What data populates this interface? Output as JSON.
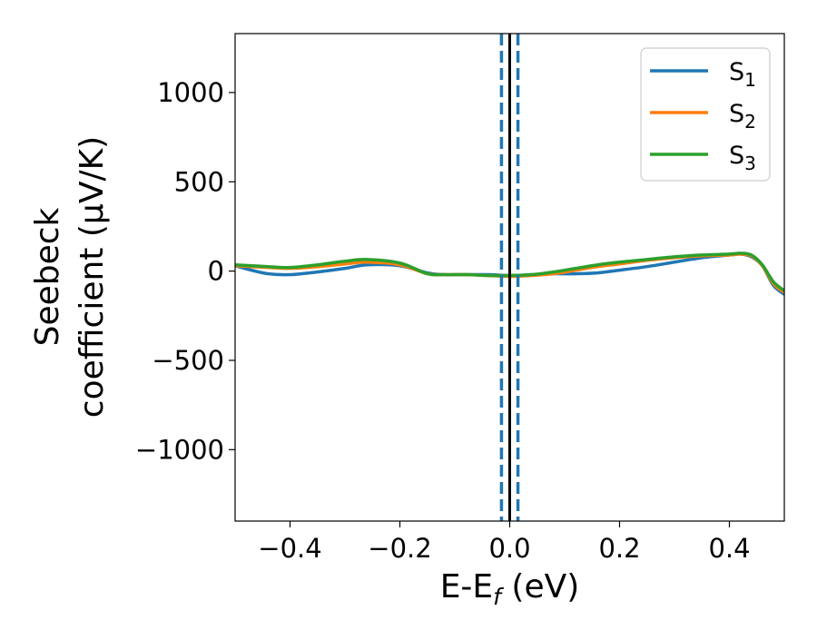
{
  "chart_data": {
    "type": "line",
    "xlabel": "E-E",
    "xlabel_sub": "f",
    "xlabel_unit": " (eV)",
    "ylabel_line1": "Seebeck",
    "ylabel_line2": "coefficient  (μV/K)",
    "xlim": [
      -0.5,
      0.5
    ],
    "ylim": [
      -1400,
      1330
    ],
    "x_ticks": [
      -0.4,
      -0.2,
      0.0,
      0.2,
      0.4
    ],
    "x_tick_labels": [
      "−0.4",
      "−0.2",
      "0.0",
      "0.2",
      "0.4"
    ],
    "y_ticks": [
      -1000,
      -500,
      0,
      500,
      1000
    ],
    "y_tick_labels": [
      "−1000",
      "−500",
      "0",
      "500",
      "1000"
    ],
    "legend_position": "upper-right",
    "grid": false,
    "vertical_lines": [
      {
        "x": 0.0,
        "style": "solid",
        "color": "#000000"
      },
      {
        "x": -0.015,
        "style": "dashed",
        "color": "#1f77b4"
      },
      {
        "x": 0.015,
        "style": "dashed",
        "color": "#1f77b4"
      }
    ],
    "series": [
      {
        "name": "S",
        "sub": "1",
        "color": "#1f77b4",
        "x": [
          -0.5,
          -0.47,
          -0.44,
          -0.4,
          -0.35,
          -0.3,
          -0.26,
          -0.2,
          -0.15,
          -0.12,
          -0.08,
          -0.04,
          0.0,
          0.04,
          0.08,
          0.12,
          0.16,
          0.2,
          0.25,
          0.3,
          0.35,
          0.4,
          0.42,
          0.44,
          0.46,
          0.48,
          0.5
        ],
        "y": [
          30,
          5,
          -15,
          -20,
          -5,
          15,
          35,
          30,
          -10,
          -20,
          -20,
          -20,
          -25,
          -20,
          -15,
          -15,
          -10,
          5,
          25,
          50,
          75,
          90,
          95,
          80,
          30,
          -80,
          -130
        ]
      },
      {
        "name": "S",
        "sub": "2",
        "color": "#ff7f0e",
        "x": [
          -0.5,
          -0.47,
          -0.44,
          -0.4,
          -0.35,
          -0.3,
          -0.26,
          -0.2,
          -0.15,
          -0.12,
          -0.08,
          -0.04,
          0.0,
          0.04,
          0.08,
          0.12,
          0.16,
          0.2,
          0.25,
          0.3,
          0.35,
          0.4,
          0.42,
          0.44,
          0.46,
          0.48,
          0.5
        ],
        "y": [
          30,
          25,
          20,
          15,
          25,
          40,
          50,
          35,
          -15,
          -20,
          -20,
          -25,
          -30,
          -25,
          -15,
          5,
          25,
          40,
          60,
          75,
          85,
          90,
          95,
          85,
          30,
          -70,
          -120
        ]
      },
      {
        "name": "S",
        "sub": "3",
        "color": "#2ca02c",
        "x": [
          -0.5,
          -0.47,
          -0.44,
          -0.4,
          -0.35,
          -0.3,
          -0.26,
          -0.2,
          -0.15,
          -0.12,
          -0.08,
          -0.04,
          0.0,
          0.04,
          0.08,
          0.12,
          0.16,
          0.2,
          0.25,
          0.3,
          0.35,
          0.4,
          0.42,
          0.44,
          0.46,
          0.48,
          0.5
        ],
        "y": [
          35,
          30,
          25,
          20,
          35,
          55,
          65,
          45,
          -15,
          -20,
          -20,
          -25,
          -25,
          -20,
          -5,
          15,
          35,
          50,
          65,
          80,
          90,
          95,
          100,
          90,
          35,
          -60,
          -110
        ]
      }
    ]
  }
}
